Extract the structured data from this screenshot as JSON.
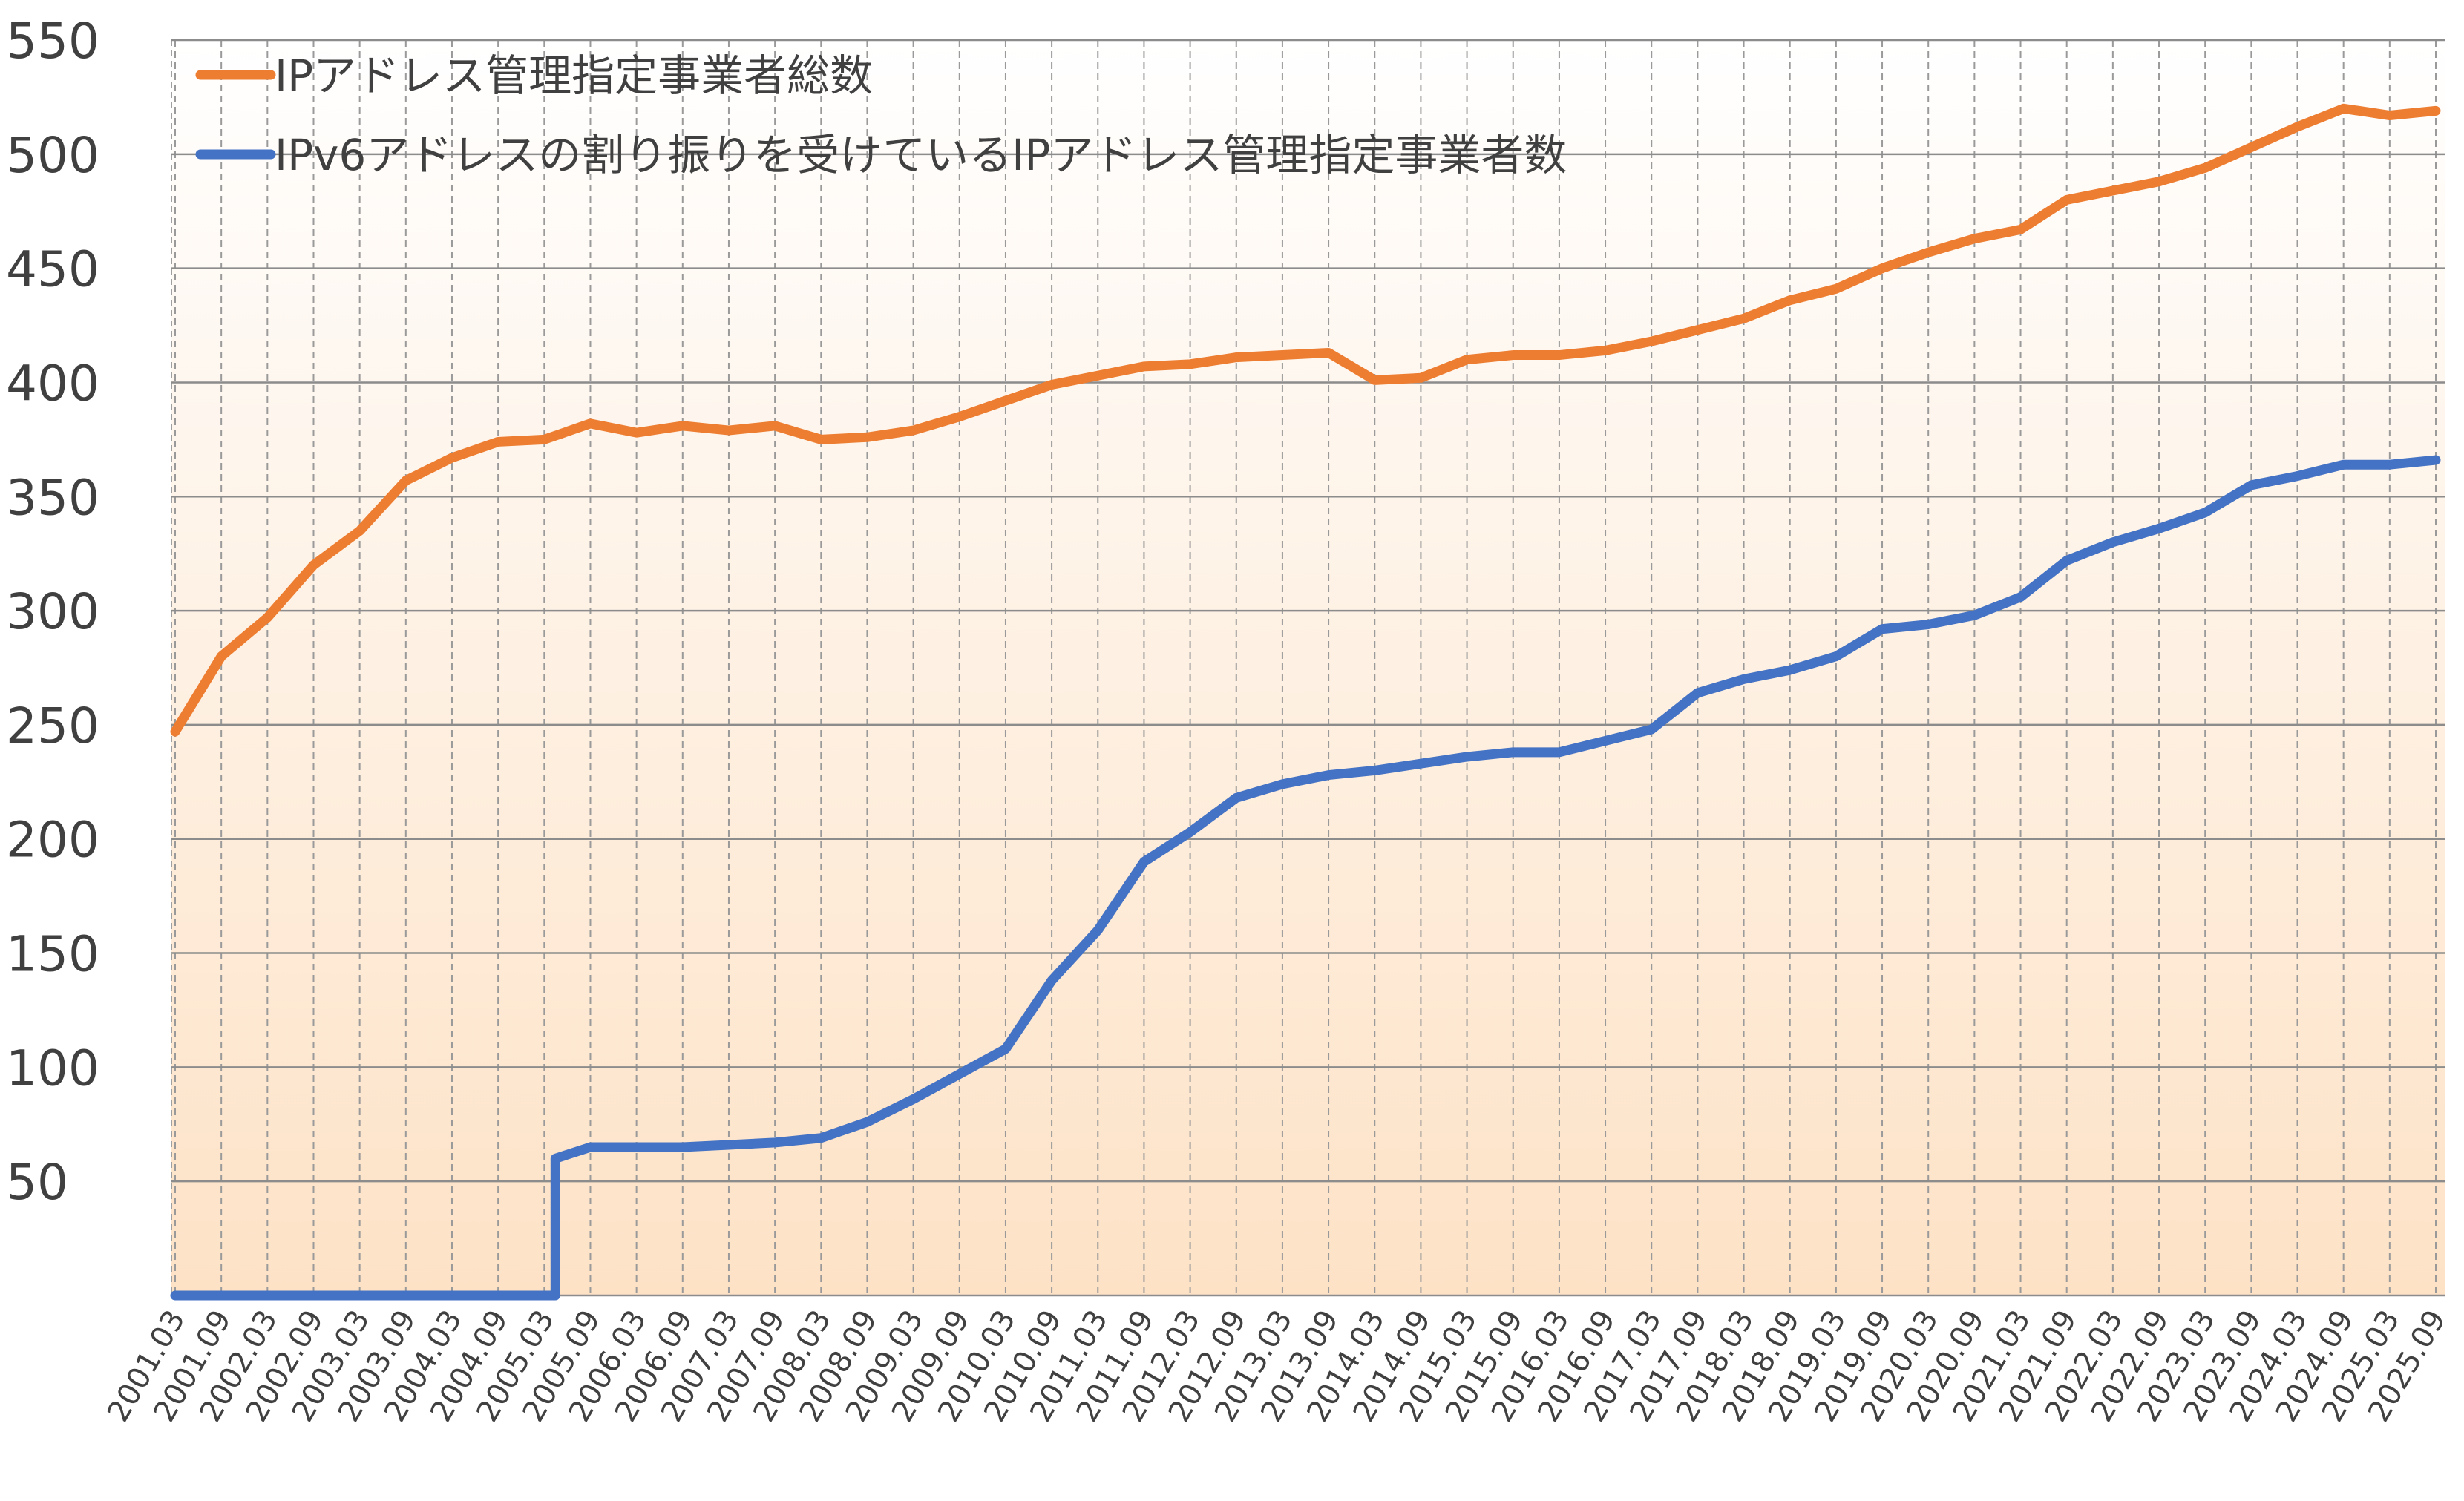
{
  "chart_data": {
    "type": "line",
    "title": "",
    "xlabel": "",
    "ylabel": "",
    "ylim": [
      0,
      550
    ],
    "yticks": [
      50,
      100,
      150,
      200,
      250,
      300,
      350,
      400,
      450,
      500,
      550
    ],
    "grid": true,
    "legend_position": "top-left",
    "x": [
      "2001.03",
      "2001.09",
      "2002.03",
      "2002.09",
      "2003.03",
      "2003.09",
      "2004.03",
      "2004.09",
      "2005.03",
      "2005.09",
      "2006.03",
      "2006.09",
      "2007.03",
      "2007.09",
      "2008.03",
      "2008.09",
      "2009.03",
      "2009.09",
      "2010.03",
      "2010.09",
      "2011.03",
      "2011.09",
      "2012.03",
      "2012.09",
      "2013.03",
      "2013.09",
      "2014.03",
      "2014.09",
      "2015.03",
      "2015.09",
      "2016.03",
      "2016.09",
      "2017.03",
      "2017.09",
      "2018.03",
      "2018.09",
      "2019.03",
      "2019.09",
      "2020.03",
      "2020.09",
      "2021.03",
      "2021.09",
      "2022.03",
      "2022.09",
      "2023.03",
      "2023.09",
      "2024.03",
      "2024.09",
      "2025.03",
      "2025.09"
    ],
    "series": [
      {
        "name": "IPアドレス管理指定事業者総数",
        "color": "#ED7D31",
        "values": [
          247,
          280,
          297,
          320,
          335,
          357,
          367,
          374,
          375,
          382,
          378,
          381,
          379,
          381,
          375,
          376,
          379,
          385,
          392,
          399,
          403,
          407,
          408,
          411,
          412,
          413,
          401,
          402,
          410,
          412,
          412,
          414,
          418,
          423,
          428,
          436,
          441,
          450,
          457,
          463,
          467,
          480,
          484,
          488,
          494,
          503,
          512,
          520,
          517,
          519
        ]
      },
      {
        "name": "IPv6アドレスの割り振りを受けているIPアドレス管理指定事業者数",
        "color": "#4472C4",
        "values": [
          0,
          0,
          0,
          0,
          0,
          0,
          0,
          0,
          0,
          65,
          65,
          65,
          66,
          67,
          69,
          76,
          86,
          97,
          108,
          138,
          160,
          190,
          203,
          218,
          224,
          228,
          230,
          233,
          236,
          238,
          238,
          243,
          248,
          264,
          270,
          274,
          280,
          292,
          294,
          298,
          306,
          322,
          330,
          336,
          343,
          355,
          359,
          364,
          364,
          366
        ]
      }
    ]
  }
}
